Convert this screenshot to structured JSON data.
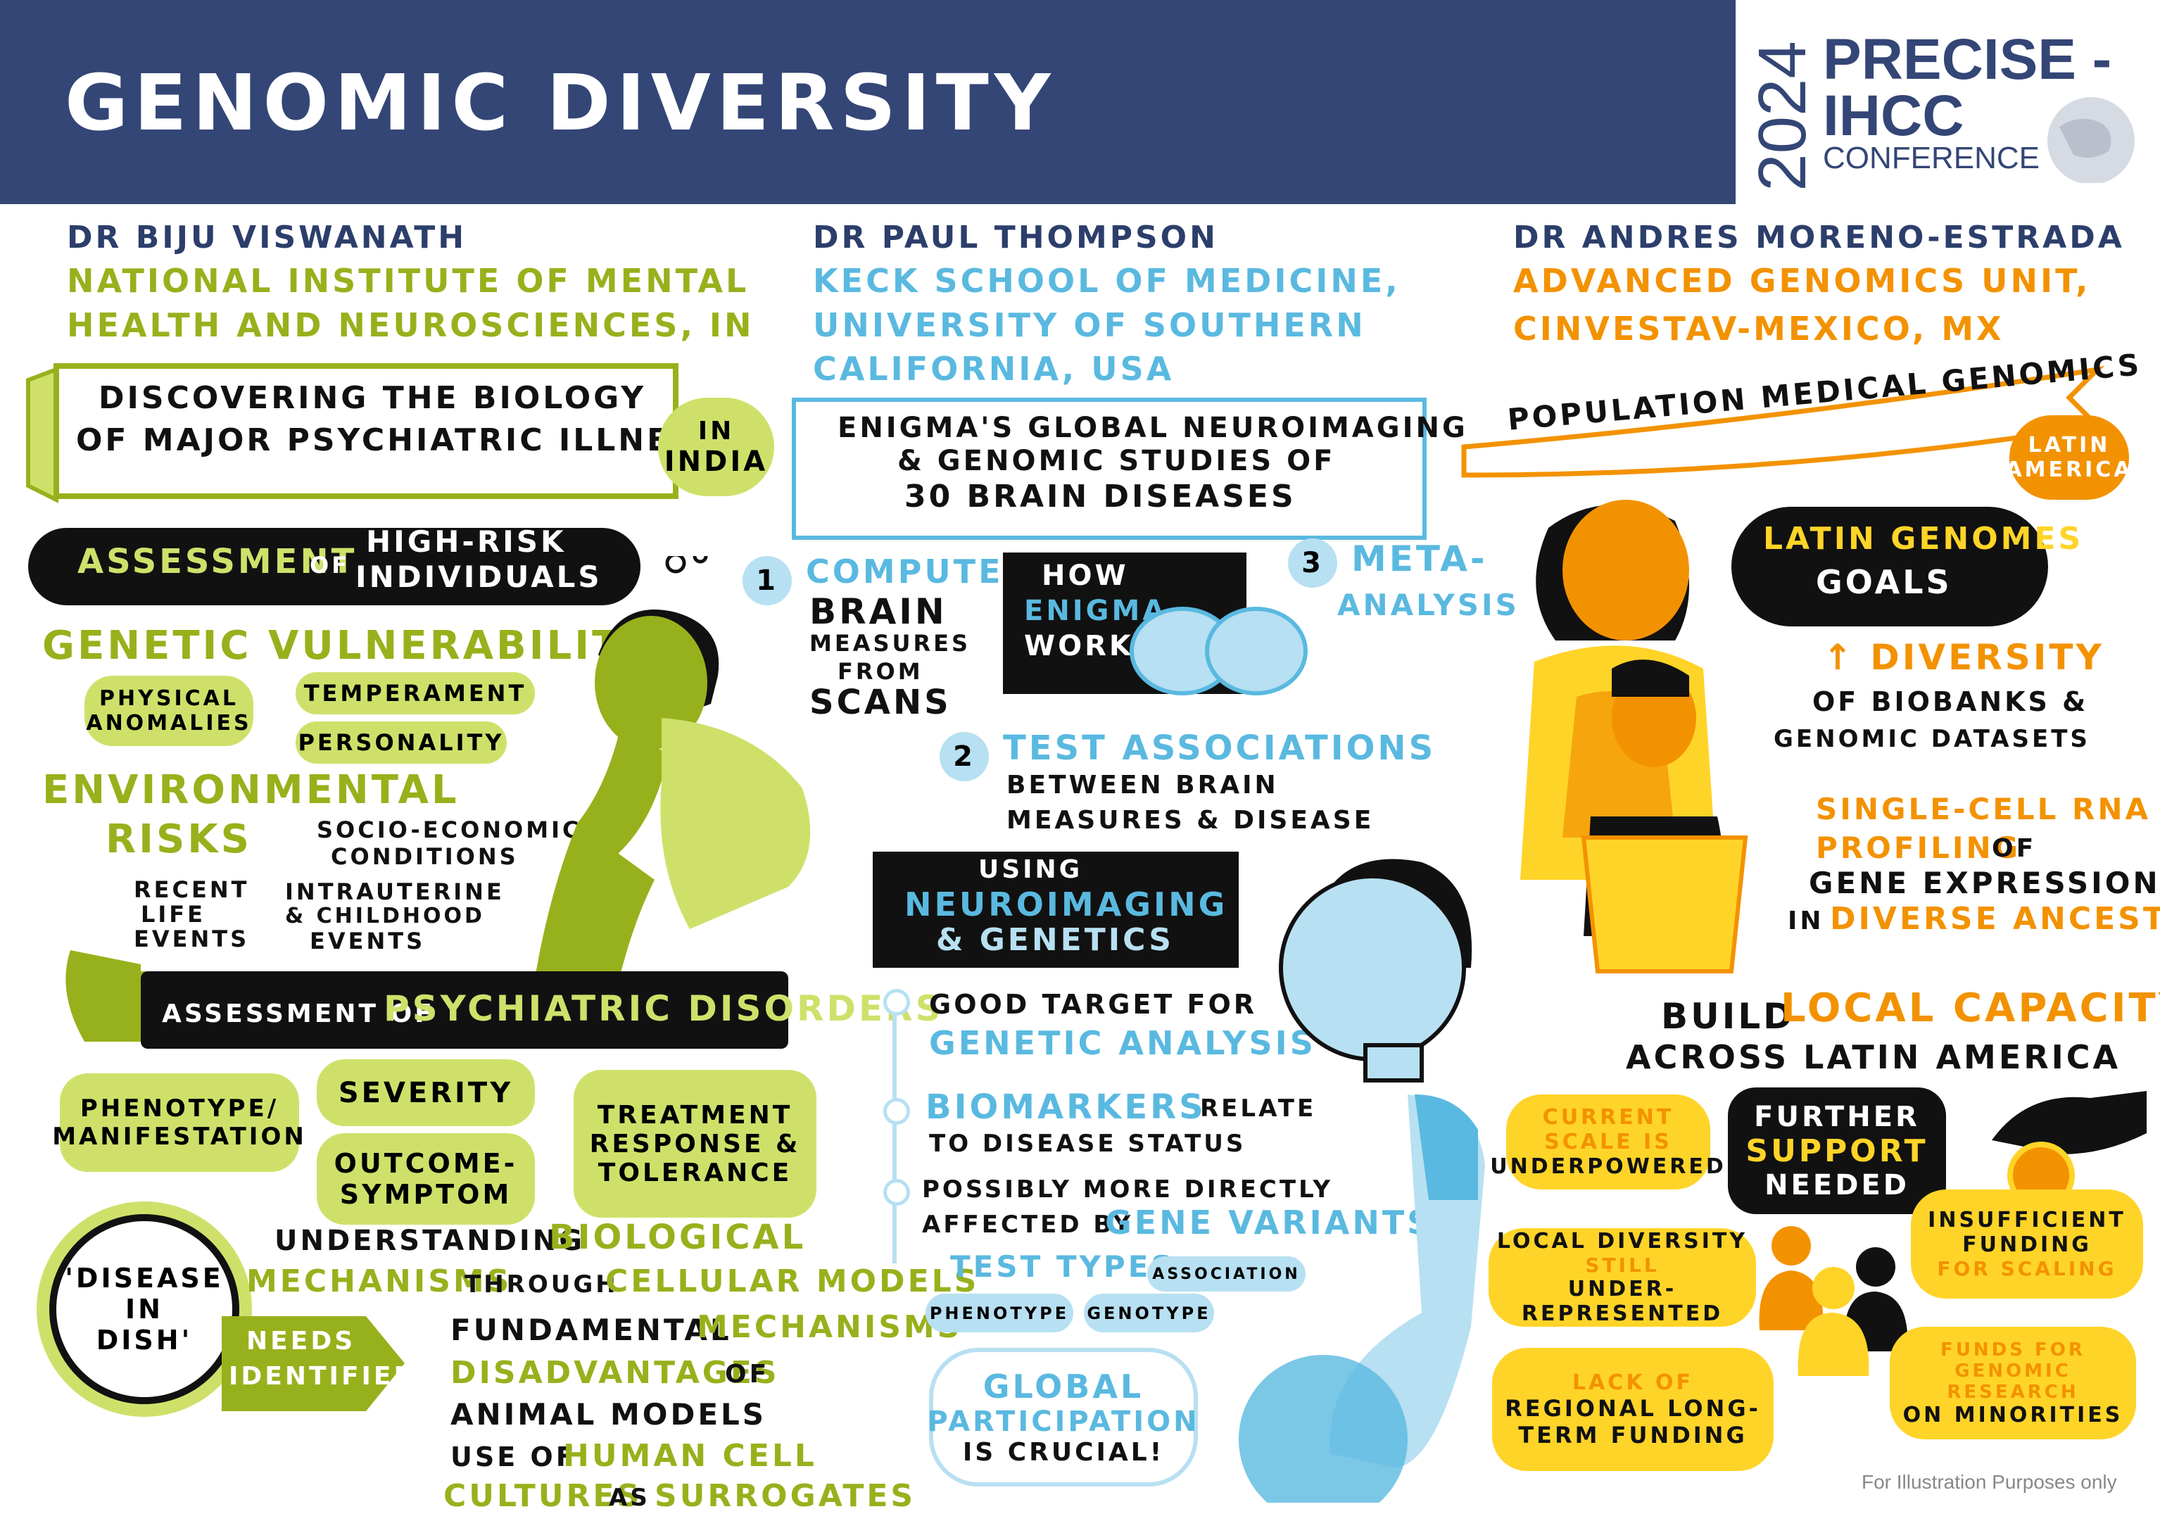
{
  "header": {
    "title": "GENOMIC DIVERSITY",
    "logo_year": "2024",
    "logo_line1": "PRECISE -",
    "logo_line2": "IHCC",
    "logo_line3": "CONFERENCE"
  },
  "left": {
    "speaker": "DR BIJU VISWANATH",
    "affiliation_1": "NATIONAL INSTITUTE OF MENTAL",
    "affiliation_2": "HEALTH AND NEUROSCIENCES, IN",
    "topic_1": "DISCOVERING THE BIOLOGY",
    "topic_2": "OF MAJOR PSYCHIATRIC ILLNESS",
    "in_india_1": "IN",
    "in_india_2": "INDIA",
    "assessment_1": "ASSESSMENT",
    "assessment_of": "OF",
    "assessment_2a": "HIGH-RISK",
    "assessment_2b": "INDIVIDUALS",
    "gen_vuln": "GENETIC VULNERABILITIES",
    "physical_1": "PHYSICAL",
    "physical_2": "ANOMALIES",
    "temperament": "TEMPERAMENT",
    "personality": "PERSONALITY",
    "env_1": "ENVIRONMENTAL",
    "env_2": "RISKS",
    "socio_1": "SOCIO-ECONOMIC",
    "socio_2": "CONDITIONS",
    "recent_1": "RECENT",
    "recent_2": "LIFE",
    "recent_3": "EVENTS",
    "intra_1": "INTRAUTERINE",
    "intra_2": "& CHILDHOOD",
    "intra_3": "EVENTS",
    "psych_a": "ASSESSMENT OF",
    "psych_b": "PSYCHIATRIC DISORDERS",
    "pheno_1": "PHENOTYPE/",
    "pheno_2": "MANIFESTATION",
    "severity": "SEVERITY",
    "outcome_1": "OUTCOME-",
    "outcome_2": "SYMPTOM",
    "treat_1": "TREATMENT",
    "treat_2": "RESPONSE &",
    "treat_3": "TOLERANCE",
    "dish_1": "'DISEASE",
    "dish_2": "IN",
    "dish_3": "DISH'",
    "under_a": "UNDERSTANDING",
    "under_b": "BIOLOGICAL",
    "under_c": "MECHANISMS",
    "under_d": "THROUGH",
    "under_e": "CELLULAR MODELS",
    "needs_1": "NEEDS",
    "needs_2": "IDENTIFIED",
    "fund_a": "FUNDAMENTAL",
    "fund_b": "MECHANISMS",
    "disadv_a": "DISADVANTAGES",
    "disadv_b": "OF",
    "disadv_c": "ANIMAL MODELS",
    "use_a": "USE OF",
    "use_b": "HUMAN CELL",
    "use_c": "CULTURES",
    "use_d": "AS",
    "use_e": "SURROGATES"
  },
  "middle": {
    "speaker": "DR PAUL THOMPSON",
    "aff_1": "KECK SCHOOL OF MEDICINE,",
    "aff_2": "UNIVERSITY OF SOUTHERN",
    "aff_3": "CALIFORNIA, USA",
    "topic_1": "ENIGMA'S GLOBAL NEUROIMAGING",
    "topic_2": "& GENOMIC STUDIES OF",
    "topic_3": "30 BRAIN DISEASES",
    "step1_num": "1",
    "step1_a": "COMPUTE",
    "step1_b": "BRAIN",
    "step1_c": "MEASURES",
    "step1_d": "FROM",
    "step1_e": "SCANS",
    "how_1": "HOW",
    "how_2": "ENIGMA",
    "how_3": "WORKS",
    "step3_num": "3",
    "step3_a": "META-",
    "step3_b": "ANALYSIS",
    "step2_num": "2",
    "step2_a": "TEST ASSOCIATIONS",
    "step2_b": "BETWEEN BRAIN",
    "step2_c": "MEASURES & DISEASE",
    "using_1": "USING",
    "using_2": "NEUROIMAGING",
    "using_3": "& GENETICS",
    "good_1": "GOOD TARGET FOR",
    "good_2": "GENETIC ANALYSIS",
    "bio_a": "BIOMARKERS",
    "bio_b": "RELATE",
    "bio_c": "TO DISEASE STATUS",
    "poss_1": "POSSIBLY MORE DIRECTLY",
    "poss_2a": "AFFECTED BY",
    "poss_2b": "GENE VARIANTS",
    "test_types": "TEST TYPES",
    "association": "ASSOCIATION",
    "phenotype": "PHENOTYPE",
    "genotype": "GENOTYPE",
    "global_1": "GLOBAL",
    "global_2": "PARTICIPATION",
    "global_3": "IS CRUCIAL!"
  },
  "right": {
    "speaker": "DR ANDRES MORENO-ESTRADA",
    "aff_1": "ADVANCED GENOMICS UNIT,",
    "aff_2": "CINVESTAV-MEXICO, MX",
    "topic": "POPULATION MEDICAL GENOMICS",
    "latin_1": "LATIN",
    "latin_2": "AMERICA",
    "goals_1": "LATIN GENOMES",
    "goals_2": "GOALS",
    "div_a": "↑ DIVERSITY",
    "div_b": "OF BIOBANKS &",
    "div_c": "GENOMIC DATASETS",
    "sc_1": "SINGLE-CELL RNA",
    "sc_2a": "PROFILING",
    "sc_2b": "OF",
    "sc_3": "GENE EXPRESSION",
    "sc_4a": "IN",
    "sc_4b": "DIVERSE ANCESTRY",
    "build_a": "BUILD",
    "build_b": "LOCAL CAPACITY",
    "build_c": "ACROSS LATIN AMERICA",
    "current_1": "CURRENT",
    "current_2": "SCALE IS",
    "current_3": "UNDERPOWERED",
    "further_1": "FURTHER",
    "further_2": "SUPPORT",
    "further_3": "NEEDED",
    "localdiv_1": "LOCAL DIVERSITY",
    "localdiv_2": "STILL",
    "localdiv_3": "UNDER-REPRESENTED",
    "insuff_1": "INSUFFICIENT",
    "insuff_2": "FUNDING",
    "insuff_3": "FOR SCALING",
    "lack_1": "LACK OF",
    "lack_2": "REGIONAL LONG-",
    "lack_3": "TERM FUNDING",
    "funds_1": "FUNDS FOR",
    "funds_2": "GENOMIC RESEARCH",
    "funds_3": "ON MINORITIES"
  },
  "footer": "For Illustration Purposes only",
  "colors": {
    "navy": "#344676",
    "green": "#97b11c",
    "light_green": "#cfe06a",
    "blue": "#5ab9e0",
    "light_blue": "#b7e0f2",
    "orange": "#f39200",
    "yellow": "#ffd428",
    "black": "#111111"
  }
}
